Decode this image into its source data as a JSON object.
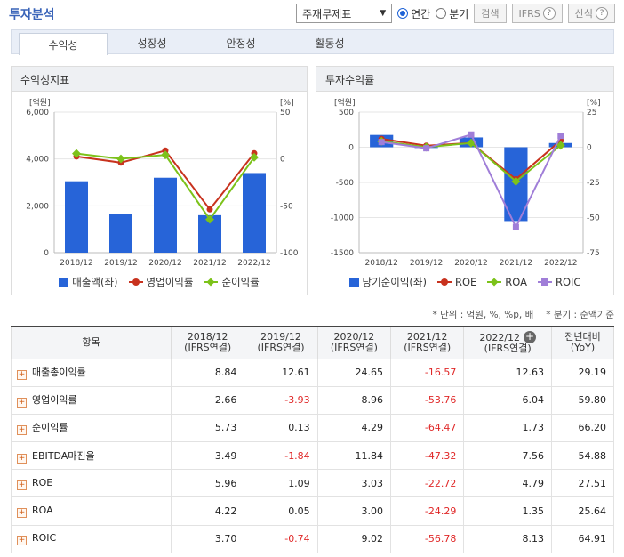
{
  "header": {
    "title": "투자분석",
    "select_value": "주재무제표",
    "radio_annual": "연간",
    "radio_quarter": "분기",
    "search_label": "검색",
    "ifrs_label": "IFRS",
    "formula_label": "산식"
  },
  "tabs": [
    "수익성",
    "성장성",
    "안정성",
    "활동성"
  ],
  "panel_left": {
    "title": "수익성지표",
    "left_unit": "[억원]",
    "right_unit": "[%]",
    "legend": [
      "매출액(좌)",
      "영업이익률",
      "순이익률"
    ]
  },
  "panel_right": {
    "title": "투자수익률",
    "left_unit": "[억원]",
    "right_unit": "[%]",
    "legend": [
      "당기순이익(좌)",
      "ROE",
      "ROA",
      "ROIC"
    ]
  },
  "chart_data": [
    {
      "type": "bar",
      "categories": [
        "2018/12",
        "2019/12",
        "2020/12",
        "2021/12",
        "2022/12"
      ],
      "series": [
        {
          "name": "매출액(좌)",
          "axis": "left",
          "type": "bar",
          "values": [
            3050,
            1650,
            3200,
            1600,
            3400
          ],
          "color": "#2764d8"
        },
        {
          "name": "영업이익률",
          "axis": "right",
          "type": "line",
          "values": [
            2.66,
            -3.93,
            8.96,
            -53.76,
            6.04
          ],
          "color": "#c8321e"
        },
        {
          "name": "순이익률",
          "axis": "right",
          "type": "line",
          "values": [
            5.73,
            0.13,
            4.29,
            -64.47,
            1.73
          ],
          "color": "#7cc21a"
        }
      ],
      "yleft_ticks": [
        "6,000",
        "4,000",
        "2,000",
        "0"
      ],
      "yleft_lim": [
        0,
        6000
      ],
      "yright_ticks": [
        "50",
        "0",
        "-50",
        "-100"
      ],
      "yright_lim": [
        -100,
        50
      ]
    },
    {
      "type": "bar",
      "categories": [
        "2018/12",
        "2019/12",
        "2020/12",
        "2021/12",
        "2022/12"
      ],
      "series": [
        {
          "name": "당기순이익(좌)",
          "axis": "left",
          "type": "bar",
          "values": [
            175,
            2,
            140,
            -1050,
            60
          ],
          "color": "#2764d8"
        },
        {
          "name": "ROE",
          "axis": "right",
          "type": "line",
          "values": [
            5.96,
            1.09,
            3.03,
            -22.72,
            4.79
          ],
          "color": "#c8321e"
        },
        {
          "name": "ROA",
          "axis": "right",
          "type": "line",
          "values": [
            4.22,
            0.05,
            3.0,
            -24.29,
            1.35
          ],
          "color": "#7cc21a"
        },
        {
          "name": "ROIC",
          "axis": "right",
          "type": "line",
          "values": [
            3.7,
            -0.74,
            9.02,
            -56.78,
            8.13
          ],
          "color": "#a07ed8"
        }
      ],
      "yleft_ticks": [
        "500",
        "0",
        "-500",
        "-1000",
        "-1500"
      ],
      "yleft_lim": [
        -1500,
        500
      ],
      "yright_ticks": [
        "25",
        "0",
        "-25",
        "-50",
        "-75"
      ],
      "yright_lim": [
        -75,
        25
      ]
    }
  ],
  "units_note": "* 단위 : 억원, %, %p, 배",
  "period_note": "* 분기 : 순액기준",
  "table": {
    "headers": [
      "항목",
      "2018/12\n(IFRS연결)",
      "2019/12\n(IFRS연결)",
      "2020/12\n(IFRS연결)",
      "2021/12\n(IFRS연결)",
      "2022/12\n(IFRS연결)",
      "전년대비\n(YoY)"
    ],
    "rows": [
      {
        "name": "매출총이익률",
        "values": [
          "8.84",
          "12.61",
          "24.65",
          "-16.57",
          "12.63",
          "29.19"
        ]
      },
      {
        "name": "영업이익률",
        "values": [
          "2.66",
          "-3.93",
          "8.96",
          "-53.76",
          "6.04",
          "59.80"
        ]
      },
      {
        "name": "순이익률",
        "values": [
          "5.73",
          "0.13",
          "4.29",
          "-64.47",
          "1.73",
          "66.20"
        ]
      },
      {
        "name": "EBITDA마진율",
        "values": [
          "3.49",
          "-1.84",
          "11.84",
          "-47.32",
          "7.56",
          "54.88"
        ]
      },
      {
        "name": "ROE",
        "values": [
          "5.96",
          "1.09",
          "3.03",
          "-22.72",
          "4.79",
          "27.51"
        ]
      },
      {
        "name": "ROA",
        "values": [
          "4.22",
          "0.05",
          "3.00",
          "-24.29",
          "1.35",
          "25.64"
        ]
      },
      {
        "name": "ROIC",
        "values": [
          "3.70",
          "-0.74",
          "9.02",
          "-56.78",
          "8.13",
          "64.91"
        ]
      }
    ]
  }
}
